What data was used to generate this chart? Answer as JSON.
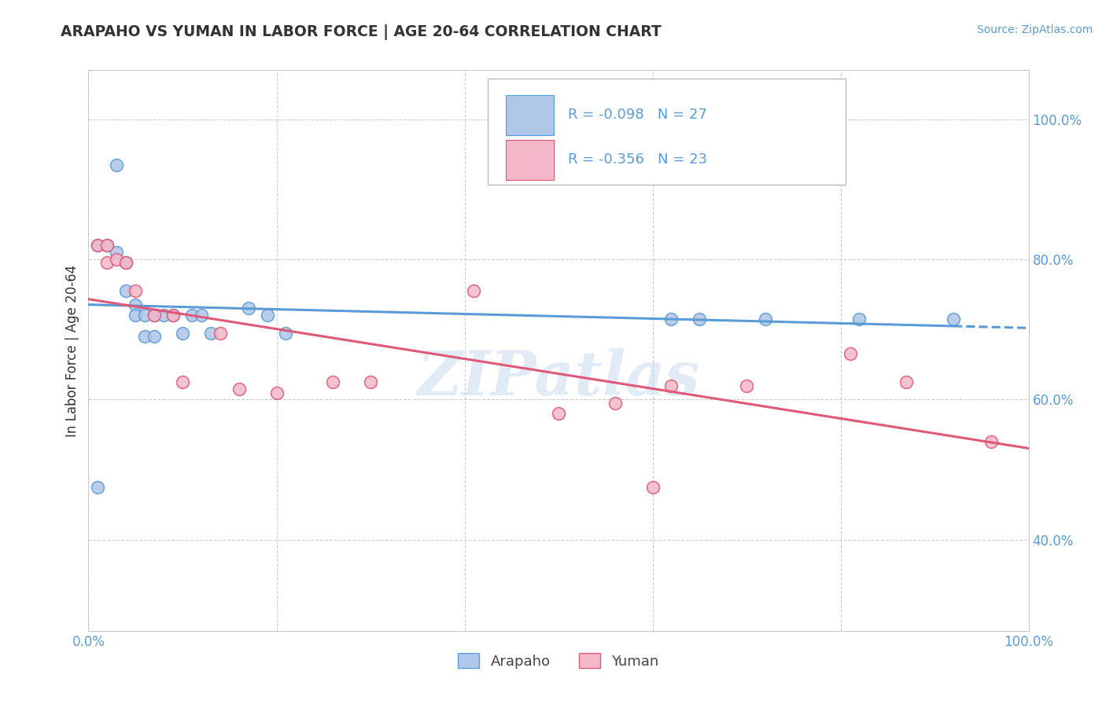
{
  "title": "ARAPAHO VS YUMAN IN LABOR FORCE | AGE 20-64 CORRELATION CHART",
  "source_text": "Source: ZipAtlas.com",
  "ylabel": "In Labor Force | Age 20-64",
  "xlim": [
    0.0,
    1.0
  ],
  "ylim": [
    0.27,
    1.07
  ],
  "arapaho_color": "#aec6e8",
  "arapaho_line_color": "#5b9bd5",
  "yuman_color": "#f4b8c8",
  "yuman_line_color": "#e05878",
  "legend_r_arapaho": "R = -0.098",
  "legend_n_arapaho": "N = 27",
  "legend_r_yuman": "R = -0.356",
  "legend_n_yuman": "N = 23",
  "arapaho_x": [
    0.03,
    0.01,
    0.01,
    0.02,
    0.03,
    0.04,
    0.04,
    0.05,
    0.05,
    0.06,
    0.06,
    0.07,
    0.07,
    0.08,
    0.09,
    0.1,
    0.11,
    0.12,
    0.13,
    0.17,
    0.19,
    0.21,
    0.62,
    0.65,
    0.72,
    0.82,
    0.92
  ],
  "arapaho_y": [
    0.935,
    0.475,
    0.82,
    0.82,
    0.81,
    0.795,
    0.755,
    0.735,
    0.72,
    0.72,
    0.69,
    0.72,
    0.69,
    0.72,
    0.72,
    0.695,
    0.72,
    0.72,
    0.695,
    0.73,
    0.72,
    0.695,
    0.715,
    0.715,
    0.715,
    0.715,
    0.715
  ],
  "yuman_x": [
    0.01,
    0.02,
    0.02,
    0.03,
    0.04,
    0.05,
    0.07,
    0.09,
    0.1,
    0.14,
    0.16,
    0.2,
    0.26,
    0.3,
    0.41,
    0.5,
    0.56,
    0.6,
    0.62,
    0.7,
    0.81,
    0.87,
    0.96
  ],
  "yuman_y": [
    0.82,
    0.82,
    0.795,
    0.8,
    0.795,
    0.755,
    0.72,
    0.72,
    0.625,
    0.695,
    0.615,
    0.61,
    0.625,
    0.625,
    0.755,
    0.58,
    0.595,
    0.475,
    0.62,
    0.62,
    0.665,
    0.625,
    0.54
  ],
  "watermark": "ZIPatlas",
  "background_color": "#ffffff",
  "grid_color": "#c8c8c8",
  "marker_size": 130,
  "arapaho_label": "Arapaho",
  "yuman_label": "Yuman"
}
